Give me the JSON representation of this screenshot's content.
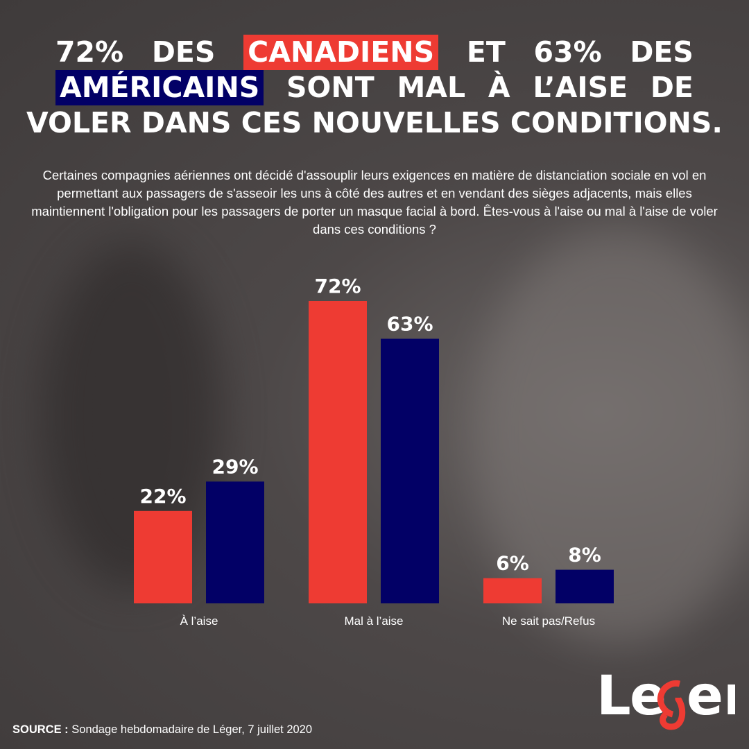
{
  "title": {
    "lines": [
      [
        {
          "text": "72%"
        },
        {
          "text": "DES"
        },
        {
          "text": "CANADIENS",
          "highlight": "red"
        },
        {
          "text": "ET"
        },
        {
          "text": "63%"
        },
        {
          "text": "DES"
        }
      ],
      [
        {
          "text": "AMÉRICAINS",
          "highlight": "navy"
        },
        {
          "text": "SONT"
        },
        {
          "text": "MAL"
        },
        {
          "text": "À"
        },
        {
          "text": "L’AISE"
        },
        {
          "text": "DE"
        }
      ],
      [
        {
          "text": "VOLER DANS CES NOUVELLES CONDITIONS."
        }
      ]
    ]
  },
  "subtitle": "Certaines compagnies aériennes ont décidé d'assouplir leurs exigences en matière de distanciation sociale en vol en permettant aux passagers de s'asseoir les uns à côté des autres et en vendant des sièges adjacents, mais elles maintiennent l'obligation pour les passagers de porter un masque facial à bord. Êtes-vous à l'aise ou mal à l'aise de voler dans ces conditions ?",
  "colors": {
    "canada": "#ee3b33",
    "usa": "#020066",
    "text": "#ffffff"
  },
  "chart_data": {
    "type": "bar",
    "categories": [
      "À l’aise",
      "Mal à l’aise",
      "Ne sait pas/Refus"
    ],
    "series": [
      {
        "values": [
          22,
          72,
          6
        ],
        "labels": [
          "22%",
          "72%",
          "6%"
        ],
        "color": "#ee3b33"
      },
      {
        "values": [
          29,
          63,
          8
        ],
        "labels": [
          "29%",
          "63%",
          "8%"
        ],
        "color": "#020066"
      }
    ],
    "unit": "%",
    "ylim": [
      0,
      72
    ],
    "grid": false,
    "axes_visible": false
  },
  "source": {
    "label": "SOURCE :",
    "text": " Sondage hebdomadaire de Léger, 7 juillet 2020"
  },
  "logo": {
    "text": "Léger"
  }
}
